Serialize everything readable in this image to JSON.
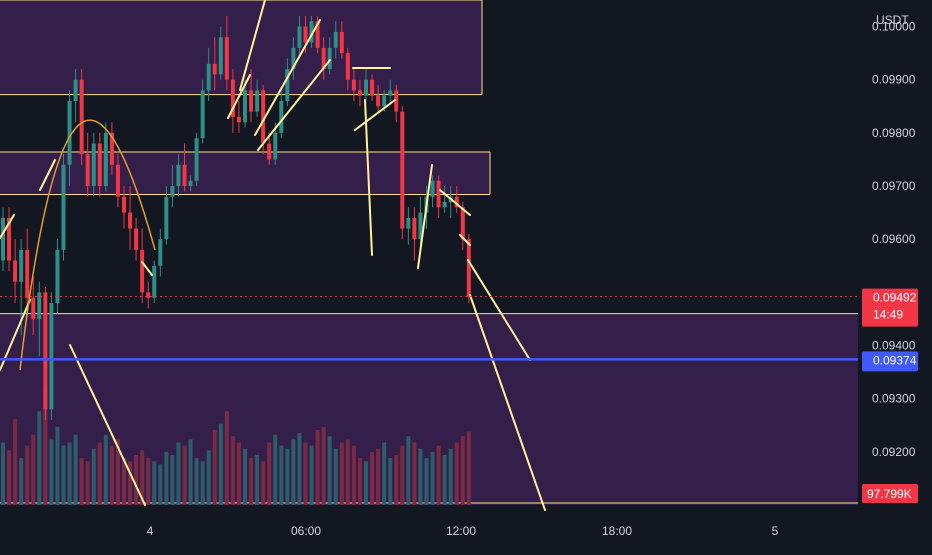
{
  "colors": {
    "background": "#131722",
    "zone_fill": "#3a2150",
    "zone_line": "#ffe08a",
    "bull": "#2e8f86",
    "bear": "#f23645",
    "bull_vol": "#2b5d6b",
    "bear_vol": "#7a2a44",
    "drawing": "#fff29a",
    "arc": "#e0a030",
    "blue_line": "#3f58ff",
    "axis_text": "#d1d4dc"
  },
  "chart_data": {
    "type": "candlestick",
    "currency": "USDT",
    "ylim": [
      0.091,
      0.1005
    ],
    "y_ticks": [
      "0.09200",
      "0.09300",
      "0.09400",
      "0.09600",
      "0.09700",
      "0.09800",
      "0.09900",
      "0.10000"
    ],
    "x_ticks": [
      "4",
      "06:00",
      "12:00",
      "18:00",
      "5"
    ],
    "current_price": {
      "label": "0.09492",
      "value": 0.09492,
      "countdown": "14:49"
    },
    "blue_level": {
      "label": "0.09374",
      "value": 0.09374
    },
    "volume_label": "97.799K",
    "zones": [
      {
        "top": 0.1005,
        "bottom": 0.09872
      },
      {
        "top": 0.09764,
        "bottom": 0.09684
      },
      {
        "top": 0.0946,
        "bottom": 0.091
      }
    ],
    "candles": [
      [
        0.0956,
        0.0966,
        0.0954,
        0.0964
      ],
      [
        0.0964,
        0.0966,
        0.0954,
        0.0956
      ],
      [
        0.0956,
        0.096,
        0.0948,
        0.0952
      ],
      [
        0.0952,
        0.096,
        0.0942,
        0.0958
      ],
      [
        0.0958,
        0.0962,
        0.0947,
        0.0949
      ],
      [
        0.0949,
        0.0953,
        0.0942,
        0.0945
      ],
      [
        0.0945,
        0.0952,
        0.0938,
        0.095
      ],
      [
        0.095,
        0.0951,
        0.0926,
        0.0928
      ],
      [
        0.0928,
        0.095,
        0.0926,
        0.0948
      ],
      [
        0.0948,
        0.096,
        0.0946,
        0.0958
      ],
      [
        0.0958,
        0.0976,
        0.0956,
        0.0974
      ],
      [
        0.0974,
        0.0988,
        0.097,
        0.0986
      ],
      [
        0.0986,
        0.0992,
        0.0982,
        0.099
      ],
      [
        0.099,
        0.0992,
        0.0974,
        0.0976
      ],
      [
        0.0976,
        0.098,
        0.0968,
        0.097
      ],
      [
        0.097,
        0.098,
        0.0968,
        0.0978
      ],
      [
        0.0978,
        0.098,
        0.0968,
        0.097
      ],
      [
        0.097,
        0.0982,
        0.0969,
        0.098
      ],
      [
        0.098,
        0.0982,
        0.0972,
        0.0974
      ],
      [
        0.0974,
        0.0976,
        0.0966,
        0.0968
      ],
      [
        0.0968,
        0.097,
        0.0962,
        0.0965
      ],
      [
        0.0965,
        0.097,
        0.0958,
        0.0962
      ],
      [
        0.0962,
        0.0964,
        0.0956,
        0.0958
      ],
      [
        0.0958,
        0.0962,
        0.0948,
        0.095
      ],
      [
        0.095,
        0.0952,
        0.0947,
        0.0949
      ],
      [
        0.0949,
        0.0956,
        0.0948,
        0.0955
      ],
      [
        0.0955,
        0.0962,
        0.0953,
        0.096
      ],
      [
        0.096,
        0.097,
        0.0959,
        0.0968
      ],
      [
        0.0968,
        0.0974,
        0.0966,
        0.097
      ],
      [
        0.097,
        0.0976,
        0.0968,
        0.0974
      ],
      [
        0.0974,
        0.0978,
        0.0969,
        0.097
      ],
      [
        0.097,
        0.0972,
        0.0969,
        0.0971
      ],
      [
        0.0971,
        0.098,
        0.097,
        0.0979
      ],
      [
        0.0979,
        0.099,
        0.0978,
        0.0988
      ],
      [
        0.0988,
        0.0996,
        0.0986,
        0.0993
      ],
      [
        0.0993,
        0.0998,
        0.0988,
        0.0991
      ],
      [
        0.0991,
        0.1,
        0.099,
        0.0998
      ],
      [
        0.0998,
        0.1002,
        0.0988,
        0.099
      ],
      [
        0.099,
        0.0992,
        0.098,
        0.0983
      ],
      [
        0.0983,
        0.0986,
        0.098,
        0.0982
      ],
      [
        0.0982,
        0.099,
        0.0981,
        0.0988
      ],
      [
        0.0988,
        0.0992,
        0.0982,
        0.0984
      ],
      [
        0.0984,
        0.099,
        0.0983,
        0.0988
      ],
      [
        0.0988,
        0.0989,
        0.0976,
        0.0978
      ],
      [
        0.0978,
        0.098,
        0.0974,
        0.0975
      ],
      [
        0.0975,
        0.0982,
        0.0974,
        0.098
      ],
      [
        0.098,
        0.0988,
        0.0979,
        0.0986
      ],
      [
        0.0986,
        0.0994,
        0.0985,
        0.0992
      ],
      [
        0.0992,
        0.0998,
        0.099,
        0.0996
      ],
      [
        0.0996,
        0.1002,
        0.0994,
        0.1
      ],
      [
        0.1,
        0.1002,
        0.0995,
        0.0997
      ],
      [
        0.0997,
        0.1002,
        0.0996,
        0.1001
      ],
      [
        0.1001,
        0.1002,
        0.0995,
        0.0996
      ],
      [
        0.0996,
        0.0998,
        0.099,
        0.0992
      ],
      [
        0.0992,
        0.0998,
        0.0991,
        0.0996
      ],
      [
        0.0996,
        0.1001,
        0.0994,
        0.0999
      ],
      [
        0.0999,
        0.1001,
        0.0994,
        0.0995
      ],
      [
        0.0995,
        0.0996,
        0.0988,
        0.099
      ],
      [
        0.099,
        0.0992,
        0.0986,
        0.0988
      ],
      [
        0.0988,
        0.099,
        0.0985,
        0.0987
      ],
      [
        0.0987,
        0.0992,
        0.0986,
        0.099
      ],
      [
        0.099,
        0.0991,
        0.0986,
        0.0987
      ],
      [
        0.0987,
        0.0989,
        0.0984,
        0.0985
      ],
      [
        0.0985,
        0.0988,
        0.0984,
        0.0987
      ],
      [
        0.0987,
        0.099,
        0.0986,
        0.0988
      ],
      [
        0.0988,
        0.0989,
        0.0982,
        0.0984
      ],
      [
        0.0984,
        0.0985,
        0.096,
        0.0962
      ],
      [
        0.0962,
        0.0966,
        0.0959,
        0.0964
      ],
      [
        0.0964,
        0.0966,
        0.0956,
        0.096
      ],
      [
        0.096,
        0.0968,
        0.0958,
        0.0965
      ],
      [
        0.0965,
        0.097,
        0.0962,
        0.0968
      ],
      [
        0.0968,
        0.0972,
        0.0966,
        0.0971
      ],
      [
        0.0971,
        0.0972,
        0.0964,
        0.0966
      ],
      [
        0.0966,
        0.097,
        0.0965,
        0.0967
      ],
      [
        0.0967,
        0.097,
        0.0964,
        0.0968
      ],
      [
        0.0968,
        0.097,
        0.0965,
        0.0966
      ],
      [
        0.0966,
        0.0967,
        0.0958,
        0.096
      ],
      [
        0.096,
        0.0961,
        0.0948,
        0.09492
      ]
    ],
    "volumes": [
      40,
      35,
      55,
      30,
      38,
      45,
      60,
      75,
      42,
      50,
      38,
      40,
      45,
      30,
      28,
      36,
      40,
      45,
      38,
      42,
      30,
      28,
      32,
      35,
      30,
      28,
      26,
      34,
      32,
      40,
      38,
      42,
      30,
      28,
      35,
      48,
      52,
      60,
      44,
      40,
      36,
      30,
      32,
      28,
      40,
      45,
      38,
      36,
      42,
      46,
      40,
      38,
      48,
      50,
      44,
      36,
      40,
      42,
      38,
      30,
      28,
      34,
      36,
      40,
      30,
      32,
      38,
      44,
      40,
      36,
      30,
      34,
      38,
      32,
      36,
      40,
      44,
      47
    ]
  }
}
